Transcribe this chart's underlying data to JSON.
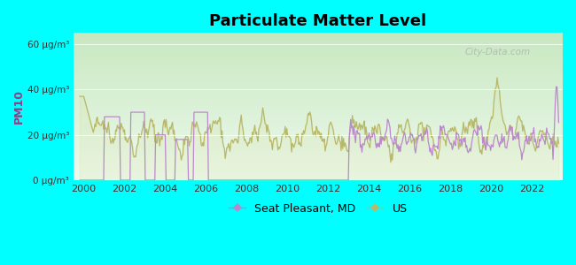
{
  "title": "Particulate Matter Level",
  "ylabel": "PM10",
  "background_color": "#00FFFF",
  "y_ticks": [
    0,
    20,
    40,
    60
  ],
  "y_tick_labels": [
    "0 μg/m³",
    "20 μg/m³",
    "40 μg/m³",
    "60 μg/m³"
  ],
  "x_ticks": [
    2000,
    2002,
    2004,
    2006,
    2008,
    2010,
    2012,
    2014,
    2016,
    2018,
    2020,
    2022
  ],
  "ylim": [
    0,
    65
  ],
  "xlim": [
    1999.5,
    2023.5
  ],
  "seat_pleasant_color": "#bb88cc",
  "us_color": "#b8b86a",
  "us_fill_color": "#d0d888",
  "seat_fill_color": "#ddb8dd",
  "watermark": "City-Data.com",
  "legend_seat": "Seat Pleasant, MD",
  "legend_us": "US",
  "gradient_top": "#c8e8c0",
  "gradient_bottom": "#eefaee"
}
